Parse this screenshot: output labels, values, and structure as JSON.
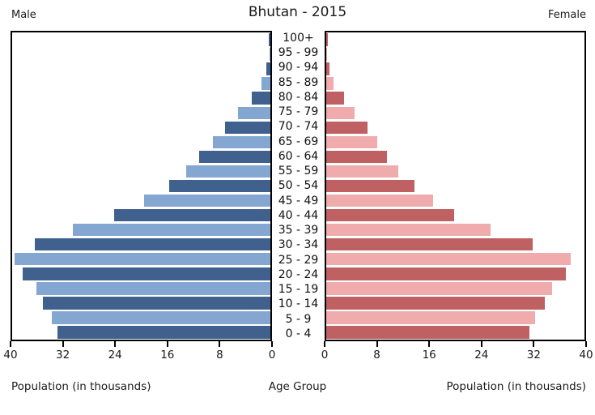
{
  "header": {
    "title": "Bhutan - 2015",
    "male_label": "Male",
    "female_label": "Female"
  },
  "footer": {
    "left_axis_label": "Population (in thousands)",
    "center_label": "Age Group",
    "right_axis_label": "Population (in thousands)"
  },
  "colors": {
    "male_dark": "#40618d",
    "male_light": "#84a7d1",
    "female_dark": "#bf6062",
    "female_light": "#f0acac",
    "axis": "#000000",
    "background": "#ffffff"
  },
  "chart_data": {
    "type": "bar",
    "subtype": "population-pyramid",
    "title": "Bhutan - 2015",
    "unit": "thousands",
    "grid": false,
    "legend": "none",
    "xlim": [
      0,
      40
    ],
    "xticks": [
      0,
      8,
      16,
      24,
      32,
      40
    ],
    "center_axis_label": "Age Group",
    "xlabel_left": "Population (in thousands)",
    "xlabel_right": "Population (in thousands)",
    "categories_top_to_bottom": [
      "100+",
      "95 - 99",
      "90 - 94",
      "85 - 89",
      "80 - 84",
      "75 - 79",
      "70 - 74",
      "65 - 69",
      "60 - 64",
      "55 - 59",
      "50 - 54",
      "45 - 49",
      "40 - 44",
      "35 - 39",
      "30 - 34",
      "25 - 29",
      "20 - 24",
      "15 - 19",
      "10 - 14",
      "5 - 9",
      "0 - 4"
    ],
    "series": [
      {
        "name": "Male",
        "side": "left",
        "values": [
          0.2,
          0.1,
          0.6,
          1.4,
          2.9,
          5.0,
          7.0,
          8.9,
          11.0,
          13.0,
          15.7,
          19.6,
          24.2,
          30.6,
          36.5,
          39.6,
          38.4,
          36.3,
          35.3,
          33.8,
          33.0
        ]
      },
      {
        "name": "Female",
        "side": "right",
        "values": [
          0.2,
          0.1,
          0.5,
          1.1,
          2.7,
          4.4,
          6.4,
          7.9,
          9.4,
          11.2,
          13.7,
          16.6,
          19.8,
          25.4,
          32.0,
          37.8,
          37.1,
          35.0,
          33.9,
          32.3,
          31.5
        ]
      }
    ]
  }
}
